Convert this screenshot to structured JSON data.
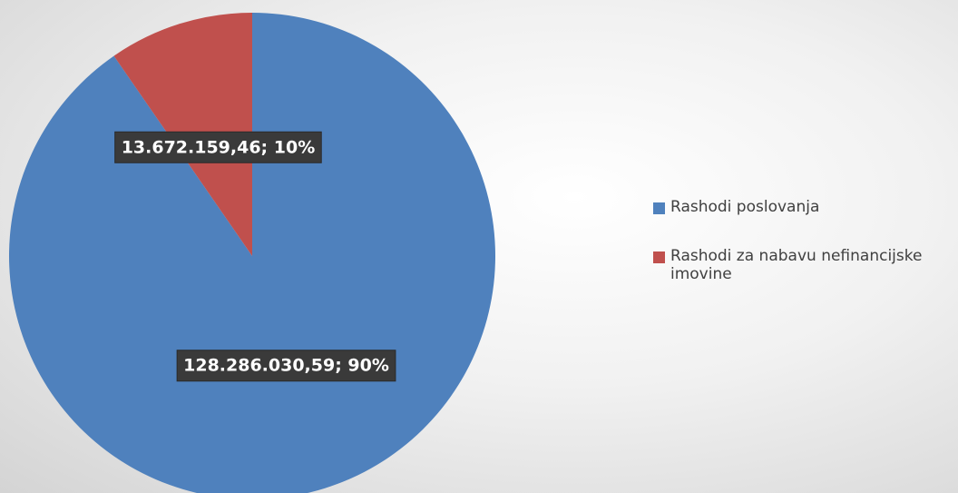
{
  "chart_data": {
    "type": "pie",
    "categories": [
      "Rashodi poslovanja",
      "Rashodi za nabavu nefinancijske imovine"
    ],
    "values": [
      128286030.59,
      13672159.46
    ],
    "value_labels": [
      "128.286.030,59; 90%",
      "13.672.159,46; 10%"
    ],
    "colors": [
      "#4f81bd",
      "#c0504d"
    ],
    "legend": "right"
  }
}
